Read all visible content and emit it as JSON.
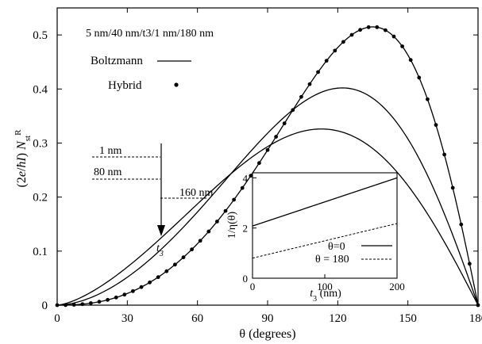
{
  "chart_data": [
    {
      "type": "line",
      "xlabel": "θ (degrees)",
      "ylabel": "(2e/ħI) N_st^R",
      "xlim": [
        0,
        180
      ],
      "ylim": [
        0,
        0.55
      ],
      "xticks": [
        "0",
        "30",
        "60",
        "90",
        "120",
        "150",
        "180"
      ],
      "yticks": [
        "0",
        "0.1",
        "0.2",
        "0.3",
        "0.4",
        "0.5"
      ],
      "grid": false,
      "legend_position": "top-left",
      "annotation_title": "5 nm/40 nm/t3/1 nm/180 nm",
      "legend": [
        {
          "label": "Boltzmann",
          "style": "line"
        },
        {
          "label": "Hybrid",
          "style": "dots"
        }
      ],
      "arrow_label": "t3",
      "series": [
        {
          "name": "1 nm",
          "style": "line",
          "peak_x": 135,
          "peak_y": 0.515
        },
        {
          "name": "80 nm",
          "style": "line",
          "peak_x": 122,
          "peak_y": 0.402
        },
        {
          "name": "160 nm",
          "style": "line",
          "peak_x": 113,
          "peak_y": 0.326
        },
        {
          "name": "Hybrid",
          "style": "dots",
          "peak_x": 135,
          "peak_y": 0.515
        }
      ],
      "thickness_labels": [
        "1 nm",
        "80 nm",
        "160 nm"
      ]
    },
    {
      "type": "line",
      "xlabel": "t3 (nm)",
      "ylabel": "1/η(θ)",
      "xlim": [
        0,
        200
      ],
      "ylim": [
        0,
        4.2
      ],
      "xticks": [
        "0",
        "100",
        "200"
      ],
      "yticks": [
        "0",
        "2",
        "4"
      ],
      "legend": [
        {
          "label": "θ=0",
          "style": "solid"
        },
        {
          "label": "θ = 180",
          "style": "dashed"
        }
      ],
      "series": [
        {
          "name": "θ=0",
          "style": "solid",
          "x": [
            0,
            200
          ],
          "y": [
            2.08,
            4.0
          ]
        },
        {
          "name": "θ = 180",
          "style": "dashed",
          "x": [
            0,
            200
          ],
          "y": [
            0.8,
            2.18
          ]
        }
      ]
    }
  ]
}
